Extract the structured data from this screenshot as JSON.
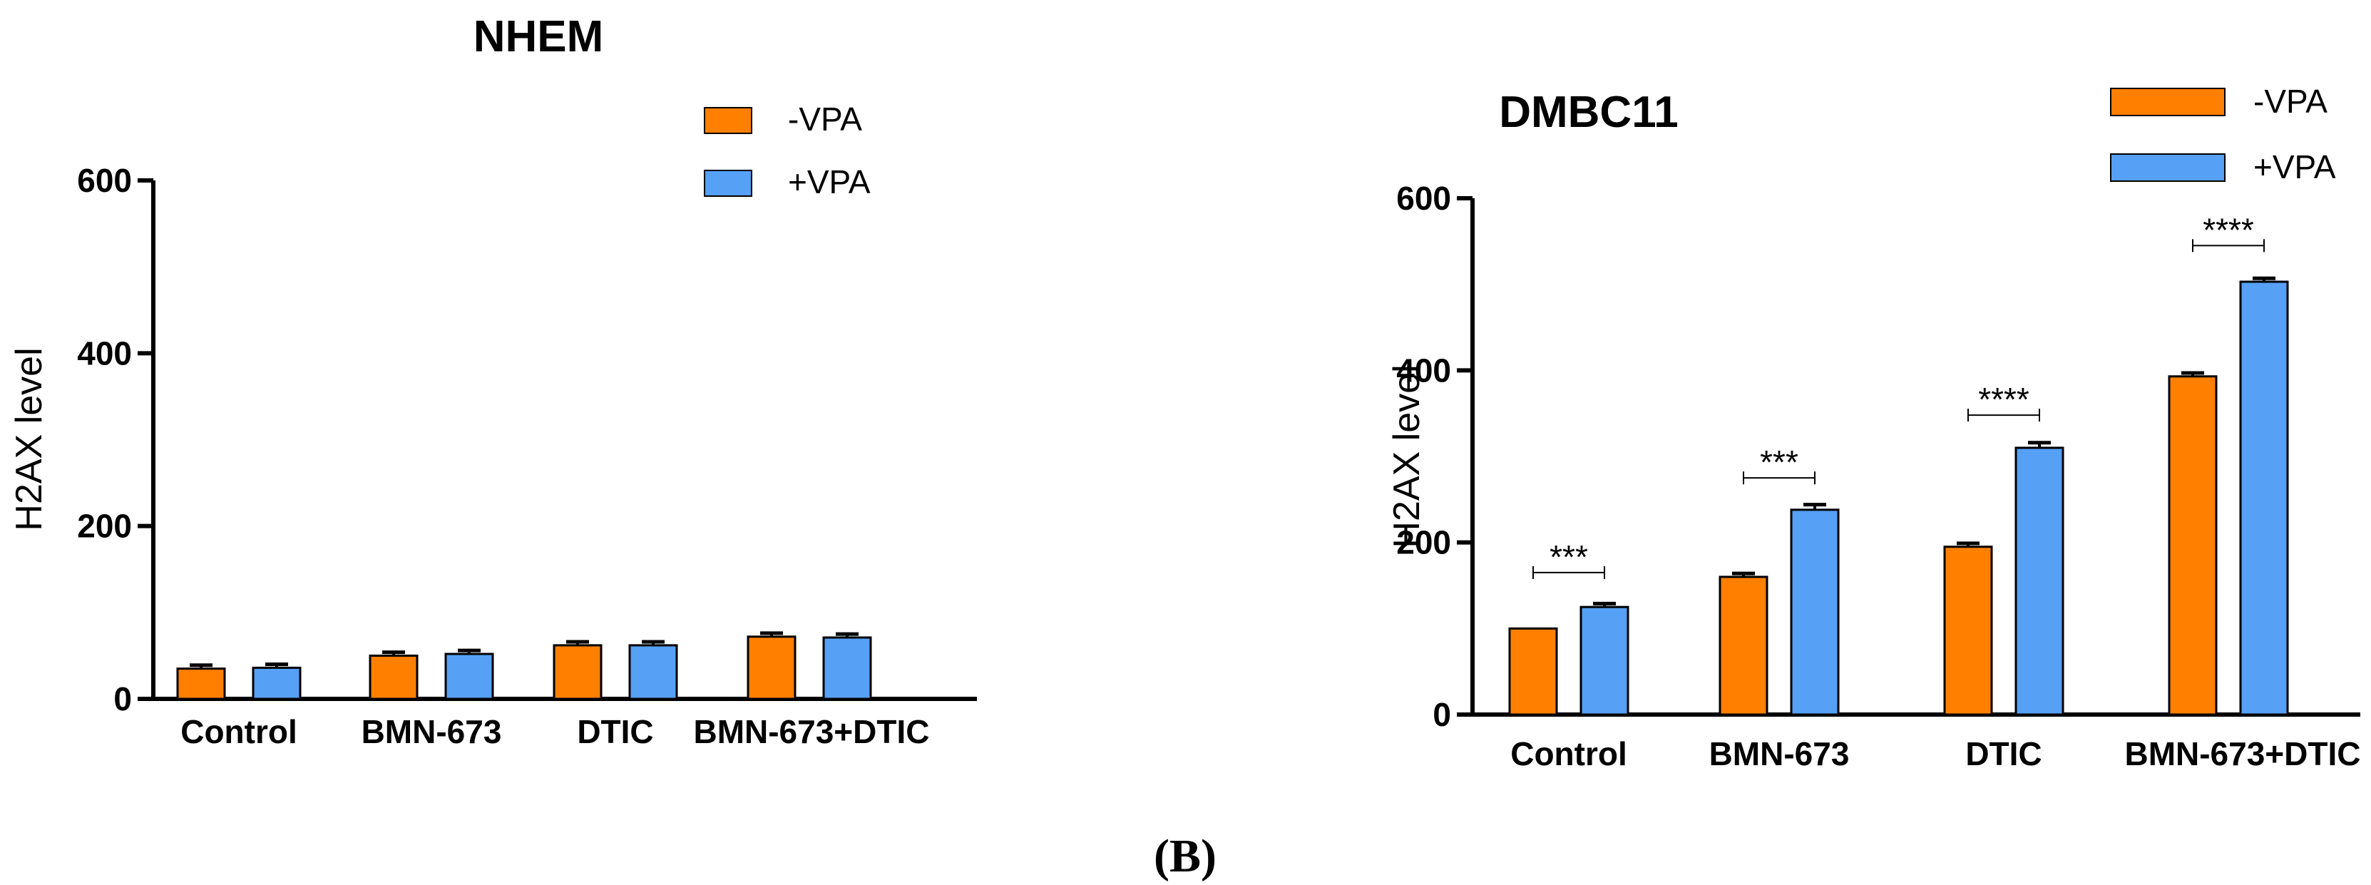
{
  "chart_data": [
    {
      "type": "bar",
      "title": "NHEM",
      "xlabel": "",
      "ylabel": "H2AX level",
      "ylim": [
        0,
        600
      ],
      "yticks": [
        0,
        200,
        400,
        600
      ],
      "categories": [
        "Control",
        "BMN-673",
        "DTIC",
        "BMN-673+DTIC"
      ],
      "series": [
        {
          "name": "-VPA",
          "color": "#FF7F00",
          "values": [
            35,
            50,
            62,
            72
          ],
          "errors": [
            4,
            4,
            4,
            4
          ]
        },
        {
          "name": "+VPA",
          "color": "#56A0F5",
          "values": [
            36,
            52,
            62,
            71
          ],
          "errors": [
            4,
            4,
            4,
            4
          ]
        }
      ],
      "significance": [],
      "legend_position": "top-right"
    },
    {
      "type": "bar",
      "title": "DMBC11",
      "xlabel": "",
      "ylabel": "H2AX level",
      "ylim": [
        0,
        600
      ],
      "yticks": [
        0,
        200,
        400,
        600
      ],
      "categories": [
        "Control",
        "BMN-673",
        "DTIC",
        "BMN-673+DTIC"
      ],
      "series": [
        {
          "name": "-VPA",
          "color": "#FF7F00",
          "values": [
            100,
            160,
            195,
            393
          ],
          "errors": [
            0,
            4,
            4,
            4
          ]
        },
        {
          "name": "+VPA",
          "color": "#56A0F5",
          "values": [
            125,
            238,
            310,
            503
          ],
          "errors": [
            4,
            6,
            6,
            4
          ]
        }
      ],
      "significance": [
        {
          "category": "Control",
          "label": "***",
          "y": 165
        },
        {
          "category": "BMN-673",
          "label": "***",
          "y": 275
        },
        {
          "category": "DTIC",
          "label": "****",
          "y": 348
        },
        {
          "category": "BMN-673+DTIC",
          "label": "****",
          "y": 545
        }
      ],
      "legend_position": "top-right"
    }
  ],
  "caption": "(B)"
}
